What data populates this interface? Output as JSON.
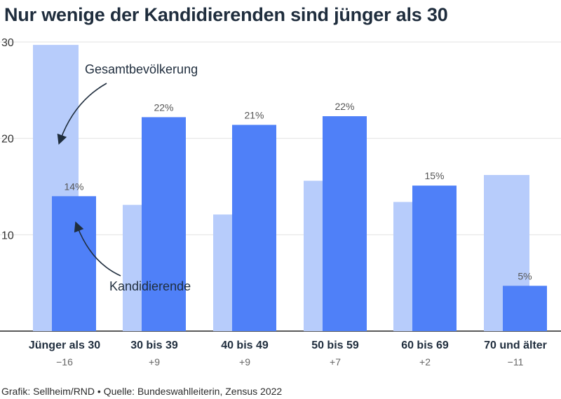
{
  "chart_data": {
    "type": "bar",
    "title": "Nur wenige der Kandidierenden sind jünger als 30",
    "categories": [
      "Jünger als 30",
      "30 bis 39",
      "40 bis 49",
      "50 bis 59",
      "60 bis 69",
      "70 und älter"
    ],
    "differences": [
      "−16",
      "+9",
      "+9",
      "+7",
      "+2",
      "−11"
    ],
    "series": [
      {
        "name": "Gesamtbevölkerung",
        "color": "#b7ccfb",
        "values": [
          29.7,
          13.1,
          12.1,
          15.6,
          13.4,
          16.2
        ]
      },
      {
        "name": "Kandidierende",
        "color": "#4f80f8",
        "values": [
          14,
          22.2,
          21.4,
          22.3,
          15.1,
          4.7
        ],
        "labels": [
          "14%",
          "22%",
          "21%",
          "22%",
          "15%",
          "5%"
        ]
      }
    ],
    "yticks": [
      10,
      20,
      30
    ],
    "ylim": [
      0,
      30
    ],
    "grid": true,
    "annotations": [
      {
        "text": "Gesamtbevölkerung",
        "target_series": "Gesamtbevölkerung"
      },
      {
        "text": "Kandidierende",
        "target_series": "Kandidierende"
      }
    ]
  },
  "source": "Grafik: Sellheim/RND • Quelle: Bundeswahlleiterin, Zensus 2022"
}
